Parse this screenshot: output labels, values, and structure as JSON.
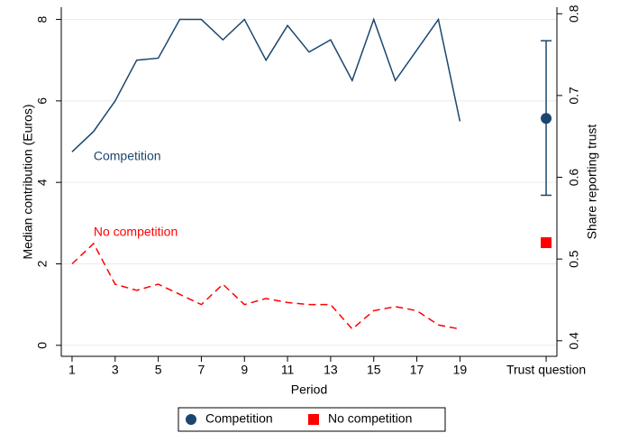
{
  "chart_data": {
    "type": "line",
    "ylabel": "Median contribution (Euros)",
    "y2label": "Share reporting trust",
    "xlabel": "Period",
    "x": [
      1,
      2,
      3,
      4,
      5,
      6,
      7,
      8,
      9,
      10,
      11,
      12,
      13,
      14,
      15,
      16,
      17,
      18,
      19
    ],
    "xlim": [
      0.5,
      23.5
    ],
    "xticks": [
      1,
      3,
      5,
      7,
      9,
      11,
      13,
      15,
      17,
      19,
      {
        "value": 23,
        "label": "Trust question"
      }
    ],
    "ylim": [
      -0.27,
      8.3
    ],
    "yticks": [
      0,
      2,
      4,
      6,
      8
    ],
    "y2lim": [
      0.381,
      0.808
    ],
    "y2ticks": [
      0.4,
      0.5,
      0.6,
      0.7,
      0.8
    ],
    "grid": true,
    "legend": "bottom",
    "series": [
      {
        "name": "Competition",
        "color": "#1a476f",
        "dashed": false,
        "marker": "circle",
        "values": [
          4.75,
          5.25,
          6.0,
          7.0,
          7.05,
          8.0,
          8.0,
          7.5,
          8.0,
          7.0,
          7.85,
          7.2,
          7.5,
          6.5,
          8.0,
          6.5,
          7.25,
          8.0,
          5.5
        ],
        "trust_value": 0.672,
        "trust_low": 0.578,
        "trust_high": 0.767
      },
      {
        "name": "No competition",
        "color": "#ff0000",
        "dashed": true,
        "marker": "square",
        "values": [
          2.0,
          2.5,
          1.5,
          1.35,
          1.5,
          1.25,
          1.0,
          1.5,
          1.0,
          1.15,
          1.05,
          1.0,
          1.0,
          0.4,
          0.85,
          0.95,
          0.85,
          0.5,
          0.4
        ],
        "trust_value": 0.52
      }
    ]
  }
}
